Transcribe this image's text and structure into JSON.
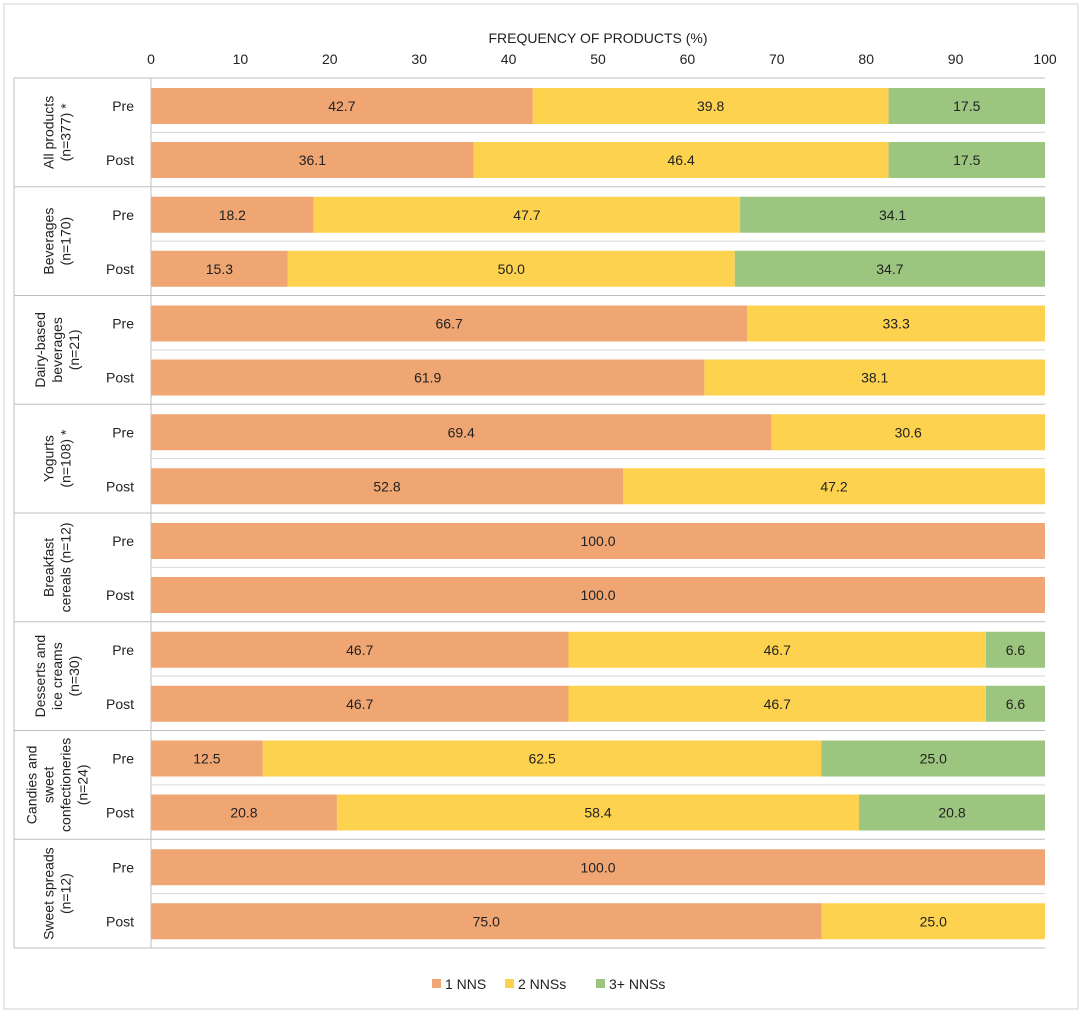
{
  "chart_data": {
    "type": "stacked-bar-horizontal",
    "title": "FREQUENCY OF PRODUCTS (%)",
    "xlim": [
      0,
      100
    ],
    "xticks": [
      "0",
      "10",
      "20",
      "30",
      "40",
      "50",
      "60",
      "70",
      "80",
      "90",
      "100"
    ],
    "legend_position": "bottom",
    "series": [
      {
        "name": "1 NNS",
        "color": "#f0a673"
      },
      {
        "name": "2 NNSs",
        "color": "#fdd24f"
      },
      {
        "name": "3+ NNSs",
        "color": "#9cc57f"
      }
    ],
    "groups": [
      {
        "label": [
          "All products",
          "(n=377) *"
        ],
        "rows": [
          {
            "label": "Pre",
            "values": [
              42.7,
              39.8,
              17.5
            ],
            "labels": [
              "42.7",
              "39.8",
              "17.5"
            ]
          },
          {
            "label": "Post",
            "values": [
              36.1,
              46.4,
              17.5
            ],
            "labels": [
              "36.1",
              "46.4",
              "17.5"
            ]
          }
        ]
      },
      {
        "label": [
          "Beverages",
          "(n=170)"
        ],
        "rows": [
          {
            "label": "Pre",
            "values": [
              18.2,
              47.7,
              34.1
            ],
            "labels": [
              "18.2",
              "47.7",
              "34.1"
            ]
          },
          {
            "label": "Post",
            "values": [
              15.3,
              50.0,
              34.7
            ],
            "labels": [
              "15.3",
              "50.0",
              "34.7"
            ]
          }
        ]
      },
      {
        "label": [
          "Dairy-based",
          "beverages",
          "(n=21)"
        ],
        "rows": [
          {
            "label": "Pre",
            "values": [
              66.7,
              33.3,
              0
            ],
            "labels": [
              "66.7",
              "33.3",
              ""
            ]
          },
          {
            "label": "Post",
            "values": [
              61.9,
              38.1,
              0
            ],
            "labels": [
              "61.9",
              "38.1",
              ""
            ]
          }
        ]
      },
      {
        "label": [
          "Yogurts",
          "(n=108) *"
        ],
        "rows": [
          {
            "label": "Pre",
            "values": [
              69.4,
              30.6,
              0
            ],
            "labels": [
              "69.4",
              "30.6",
              ""
            ]
          },
          {
            "label": "Post",
            "values": [
              52.8,
              47.2,
              0
            ],
            "labels": [
              "52.8",
              "47.2",
              ""
            ]
          }
        ]
      },
      {
        "label": [
          "Breakfast",
          "cereals (n=12)"
        ],
        "rows": [
          {
            "label": "Pre",
            "values": [
              100.0,
              0,
              0
            ],
            "labels": [
              "100.0",
              "",
              ""
            ]
          },
          {
            "label": "Post",
            "values": [
              100.0,
              0,
              0
            ],
            "labels": [
              "100.0",
              "",
              ""
            ]
          }
        ]
      },
      {
        "label": [
          "Desserts and",
          "ice creams",
          "(n=30)"
        ],
        "rows": [
          {
            "label": "Pre",
            "values": [
              46.7,
              46.7,
              6.6
            ],
            "labels": [
              "46.7",
              "46.7",
              "6.6"
            ]
          },
          {
            "label": "Post",
            "values": [
              46.7,
              46.7,
              6.6
            ],
            "labels": [
              "46.7",
              "46.7",
              "6.6"
            ]
          }
        ]
      },
      {
        "label": [
          "Candies and",
          "sweet",
          "confectioneries",
          "(n=24)"
        ],
        "rows": [
          {
            "label": "Pre",
            "values": [
              12.5,
              62.5,
              25.0
            ],
            "labels": [
              "12.5",
              "62.5",
              "25.0"
            ]
          },
          {
            "label": "Post",
            "values": [
              20.8,
              58.4,
              20.8
            ],
            "labels": [
              "20.8",
              "58.4",
              "20.8"
            ]
          }
        ]
      },
      {
        "label": [
          "Sweet spreads",
          "(n=12)"
        ],
        "rows": [
          {
            "label": "Pre",
            "values": [
              100.0,
              0,
              0
            ],
            "labels": [
              "100.0",
              "",
              ""
            ]
          },
          {
            "label": "Post",
            "values": [
              75.0,
              25.0,
              0
            ],
            "labels": [
              "75.0",
              "25.0",
              ""
            ]
          }
        ]
      }
    ]
  }
}
